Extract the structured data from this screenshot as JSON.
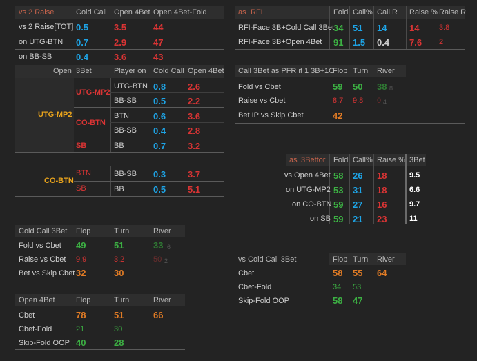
{
  "vs2raise": {
    "headers": [
      "vs 2 Raise",
      "Cold Call",
      "Open 4Bet",
      "Open 4Bet-Fold"
    ],
    "rows": [
      {
        "label": "vs 2 Raise[TOT]",
        "cc": "0.5",
        "o4": "3.5",
        "o4f": "44"
      },
      {
        "label": "on UTG-BTN",
        "cc": "0.7",
        "o4": "2.9",
        "o4f": "47"
      },
      {
        "label": "on BB-SB",
        "cc": "0.4",
        "o4": "3.6",
        "o4f": "43"
      }
    ]
  },
  "threebet": {
    "headers": [
      "Open",
      "3Bet",
      "Player on",
      "Cold Call",
      "Open 4Bet"
    ],
    "groups": [
      {
        "open": "UTG-MP2",
        "subs": [
          {
            "bettor": "UTG-MP2",
            "rows": [
              {
                "player": "UTG-BTN",
                "cc": "0.8",
                "o4": "2.6"
              },
              {
                "player": "BB-SB",
                "cc": "0.5",
                "o4": "2.2"
              }
            ]
          },
          {
            "bettor": "CO-BTN",
            "rows": [
              {
                "player": "BTN",
                "cc": "0.6",
                "o4": "3.6"
              },
              {
                "player": "BB-SB",
                "cc": "0.4",
                "o4": "2.8"
              }
            ]
          },
          {
            "bettor": "SB",
            "rows": [
              {
                "player": "BB",
                "cc": "0.7",
                "o4": "3.2"
              }
            ]
          }
        ]
      },
      {
        "open": "CO-BTN",
        "subs": [
          {
            "bettor": "BTN",
            "rows": [
              {
                "player": "BB-SB",
                "cc": "0.3",
                "o4": "3.7"
              }
            ]
          },
          {
            "bettor": "SB",
            "rows": [
              {
                "player": "BB",
                "cc": "0.5",
                "o4": "5.1"
              }
            ]
          }
        ]
      }
    ]
  },
  "coldcall3bet": {
    "headers": [
      "Cold Call 3Bet",
      "Flop",
      "Turn",
      "River"
    ],
    "rows": [
      {
        "label": "Fold vs Cbet",
        "flop": "49",
        "turn": "51",
        "river": "33",
        "river_small": "6"
      },
      {
        "label": "Raise vs Cbet",
        "flop": "9.9",
        "turn": "3.2",
        "river": "50",
        "river_small": "2"
      },
      {
        "label": "Bet vs Skip Cbet",
        "flop": "32",
        "turn": "30"
      }
    ]
  },
  "open4bet": {
    "headers": [
      "Open 4Bet",
      "Flop",
      "Turn",
      "River"
    ],
    "rows": [
      {
        "label": "Cbet",
        "flop": "78",
        "turn": "51",
        "river": "66"
      },
      {
        "label": "Cbet-Fold",
        "flop": "21",
        "turn": "30"
      },
      {
        "label": "Skip-Fold OOP",
        "flop": "40",
        "turn": "28"
      }
    ]
  },
  "rfi": {
    "headers": [
      "as",
      "RFI",
      "Fold",
      "Call%",
      "Call R",
      "Raise %",
      "Raise R"
    ],
    "rows": [
      {
        "label": "RFI-Face 3B+Cold Call 3Bet",
        "fold": "34",
        "call": "51",
        "callr": "14",
        "raise": "14",
        "raiser": "3.8"
      },
      {
        "label": "RFI-Face 3B+Open 4Bet",
        "fold": "91",
        "call": "1.5",
        "callr": "0.4",
        "raise": "7.6",
        "raiser": "2"
      }
    ]
  },
  "pfr": {
    "headers": [
      "Call 3Bet as PFR if  1 3B+1C",
      "Flop",
      "Turn",
      "River"
    ],
    "rows": [
      {
        "label": "Fold vs Cbet",
        "flop": "59",
        "turn": "50",
        "river": "38",
        "river_small": "8"
      },
      {
        "label": "Raise vs Cbet",
        "flop": "8.7",
        "turn": "9.8",
        "river": "0",
        "river_small": "4"
      },
      {
        "label": "Bet IP vs Skip Cbet",
        "flop": "42"
      }
    ]
  },
  "bettor": {
    "headers": [
      "as",
      "3Bettor",
      "Fold",
      "Call%",
      "Raise %",
      "3Bet"
    ],
    "rows": [
      {
        "label": "vs Open 4Bet",
        "fold": "58",
        "call": "26",
        "raise": "18",
        "tb": "9.5"
      },
      {
        "label": "on UTG-MP2",
        "fold": "53",
        "call": "31",
        "raise": "18",
        "tb": "6.6"
      },
      {
        "label": "on CO-BTN",
        "fold": "59",
        "call": "27",
        "raise": "16",
        "tb": "9.7"
      },
      {
        "label": "on SB",
        "fold": "59",
        "call": "21",
        "raise": "23",
        "tb": "11"
      }
    ]
  },
  "vscc3bet": {
    "headers": [
      "vs Cold Call 3Bet",
      "Flop",
      "Turn",
      "River"
    ],
    "rows": [
      {
        "label": "Cbet",
        "flop": "58",
        "turn": "55",
        "river": "64"
      },
      {
        "label": "Cbet-Fold",
        "flop": "34",
        "turn": "53"
      },
      {
        "label": "Skip-Fold OOP",
        "flop": "58",
        "turn": "47"
      }
    ]
  },
  "colors": {
    "blue": "#1ea4e6",
    "red": "#d93434",
    "green": "#3cb043",
    "orange": "#e07b25",
    "yellow": "#e8a31c"
  }
}
